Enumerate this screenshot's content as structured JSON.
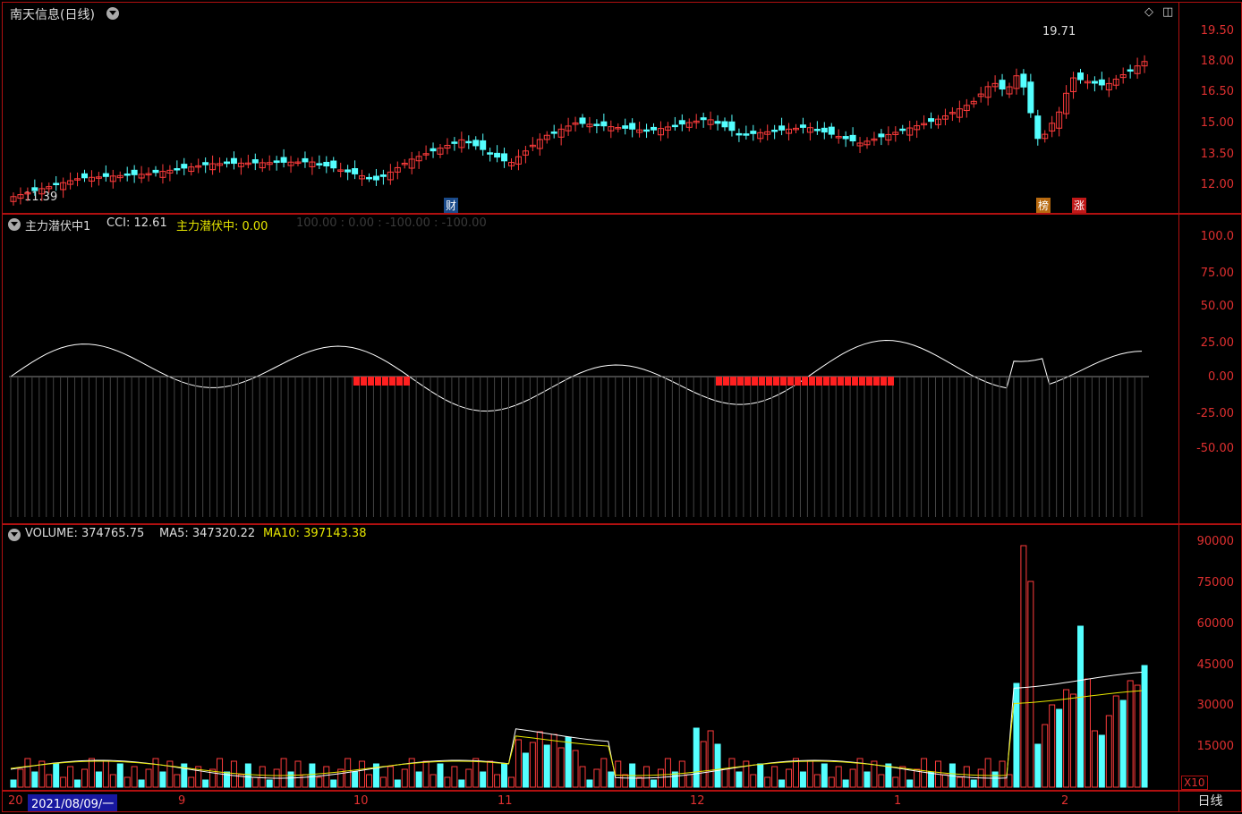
{
  "header": {
    "title": "南天信息(日线)",
    "max_price_label": "19.71",
    "min_price_label": "11.39",
    "marker_cai": "财",
    "marker_bang": "榜",
    "marker_zhang": "涨"
  },
  "price_axis": [
    "19.50",
    "18.00",
    "16.50",
    "15.00",
    "13.50",
    "12.00"
  ],
  "indicator": {
    "name": "主力潜伏中1",
    "cci_label": "CCI: 12.61",
    "signal_label": "主力潜伏中: 0.00",
    "ghost_text": "100.00 : 0.00 : -100.00 : -100.00",
    "axis": [
      "100.0",
      "75.00",
      "50.00",
      "25.00",
      "0.00",
      "-25.00",
      "-50.00"
    ]
  },
  "volume": {
    "label": "VOLUME: 374765.75",
    "ma5_label": "MA5: 347320.22",
    "ma10_label": "MA10: 397143.38",
    "axis": [
      "90000",
      "75000",
      "60000",
      "45000",
      "30000",
      "15000"
    ],
    "unit": "X10"
  },
  "bottom": {
    "year_prefix": "20",
    "cursor_date": "2021/08/09/一",
    "months": [
      "9",
      "10",
      "11",
      "12",
      "1",
      "2"
    ],
    "period_button": "日线"
  },
  "colors": {
    "up": "#ff3c3c",
    "down": "#54ffff",
    "frame": "#b01010",
    "ma10": "#e6e600"
  }
}
